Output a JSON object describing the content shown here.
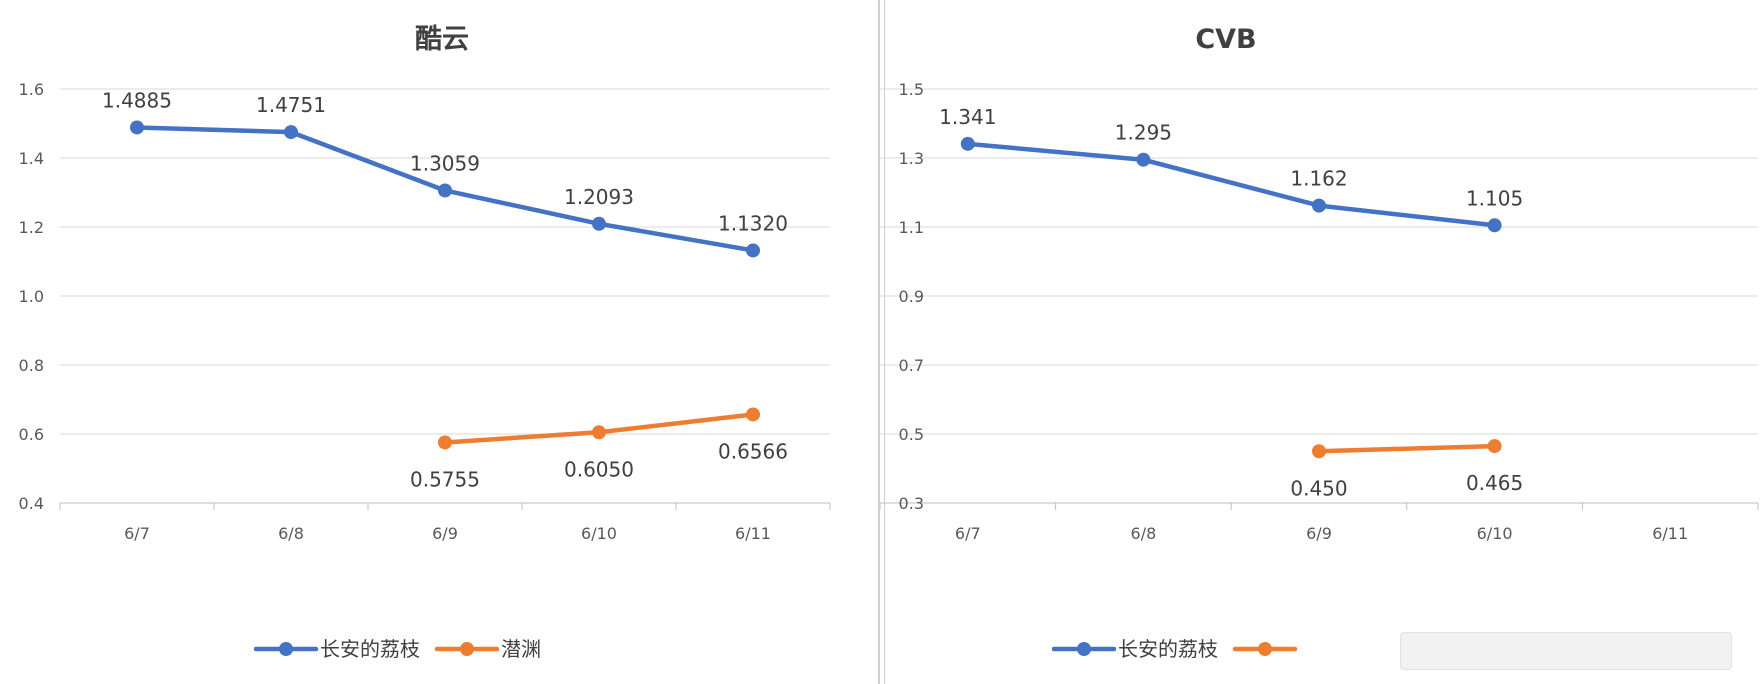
{
  "charts": [
    {
      "type": "line",
      "title": "酷云",
      "xlabel": "",
      "ylabel": "",
      "categories": [
        "6/7",
        "6/8",
        "6/9",
        "6/10",
        "6/11"
      ],
      "ylim": [
        0.4,
        1.6
      ],
      "yticks": [
        "0.4",
        "0.6",
        "0.8",
        "1.0",
        "1.2",
        "1.4",
        "1.6"
      ],
      "series": [
        {
          "name": "长安的荔枝",
          "color": "#4472C4",
          "values": [
            1.4885,
            1.4751,
            1.3059,
            1.2093,
            1.132
          ],
          "labels": [
            "1.4885",
            "1.4751",
            "1.3059",
            "1.2093",
            "1.1320"
          ],
          "label_position": "above"
        },
        {
          "name": "潜渊",
          "color": "#ED7D31",
          "values": [
            null,
            null,
            0.5755,
            0.605,
            0.6566
          ],
          "labels": [
            "",
            "",
            "0.5755",
            "0.6050",
            "0.6566"
          ],
          "label_position": "below"
        }
      ],
      "grid": true,
      "legend": "bottom"
    },
    {
      "type": "line",
      "title": "CVB",
      "xlabel": "",
      "ylabel": "",
      "categories": [
        "6/7",
        "6/8",
        "6/9",
        "6/10",
        "6/11"
      ],
      "ylim": [
        0.3,
        1.5
      ],
      "yticks": [
        "0.3",
        "0.5",
        "0.7",
        "0.9",
        "1.1",
        "1.3",
        "1.5"
      ],
      "series": [
        {
          "name": "长安的荔枝",
          "color": "#4472C4",
          "values": [
            1.341,
            1.295,
            1.162,
            1.105,
            null
          ],
          "labels": [
            "1.341",
            "1.295",
            "1.162",
            "1.105",
            ""
          ],
          "label_position": "above"
        },
        {
          "name": "",
          "color": "#ED7D31",
          "values": [
            null,
            null,
            0.45,
            0.465,
            null
          ],
          "labels": [
            "",
            "",
            "0.450",
            "0.465",
            ""
          ],
          "label_position": "below"
        }
      ],
      "grid": true,
      "legend": "bottom"
    }
  ]
}
